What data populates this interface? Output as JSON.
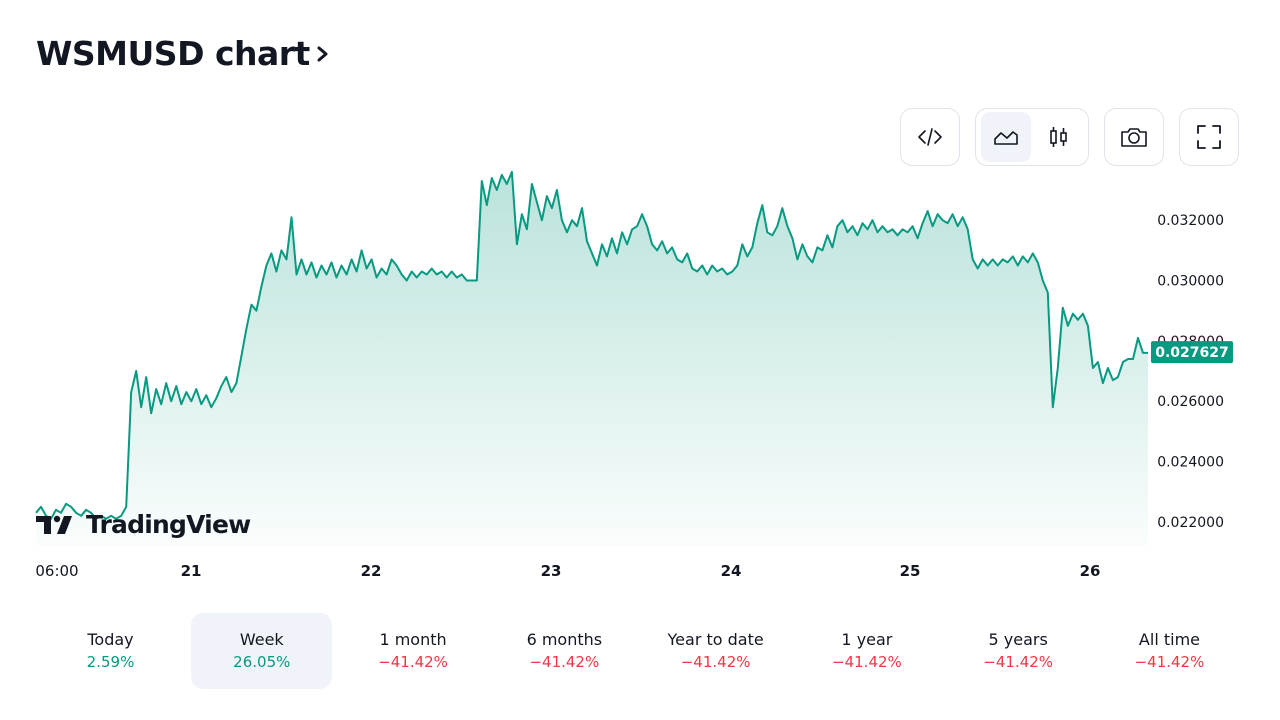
{
  "title": "WSMUSD chart",
  "toolbar": {
    "embed_icon": "code-icon",
    "area_icon": "area-chart-icon",
    "candles_icon": "candlestick-icon",
    "camera_icon": "camera-icon",
    "fullscreen_icon": "fullscreen-icon"
  },
  "logo_text": "TradingView",
  "colors": {
    "line": "#089981",
    "positive": "#089981",
    "negative": "#f23645",
    "price_tag": "#089981"
  },
  "chart_data": {
    "type": "area",
    "ylim": [
      0.0212,
      0.0332
    ],
    "y_ticks": [
      "0.032000",
      "0.030000",
      "0.028000",
      "0.026000",
      "0.024000",
      "0.022000"
    ],
    "y_tick_values": [
      0.032,
      0.03,
      0.028,
      0.026,
      0.024,
      0.022
    ],
    "x_ticks": [
      "06:00",
      "21",
      "22",
      "23",
      "24",
      "25",
      "26"
    ],
    "last_price": "0.027627",
    "last_value": 0.027627,
    "series": [
      {
        "values": [
          0.0223,
          0.0225,
          0.0222,
          0.0221,
          0.0224,
          0.0223,
          0.0226,
          0.0225,
          0.0223,
          0.0222,
          0.0224,
          0.0223,
          0.0221,
          0.0222,
          0.0221,
          0.0222,
          0.0221,
          0.0222,
          0.0225,
          0.0263,
          0.027,
          0.0258,
          0.0268,
          0.0256,
          0.0264,
          0.0259,
          0.0266,
          0.026,
          0.0265,
          0.0259,
          0.0263,
          0.026,
          0.0264,
          0.0259,
          0.0262,
          0.0258,
          0.0261,
          0.0265,
          0.0268,
          0.0263,
          0.0266,
          0.0275,
          0.0284,
          0.0292,
          0.029,
          0.0298,
          0.0305,
          0.0309,
          0.0303,
          0.031,
          0.0307,
          0.0321,
          0.0302,
          0.0307,
          0.0302,
          0.0306,
          0.0301,
          0.0305,
          0.0302,
          0.0306,
          0.0301,
          0.0305,
          0.0302,
          0.0307,
          0.0303,
          0.031,
          0.0304,
          0.0307,
          0.0301,
          0.0304,
          0.0302,
          0.0307,
          0.0305,
          0.0302,
          0.03,
          0.0303,
          0.0301,
          0.0303,
          0.0302,
          0.0304,
          0.0302,
          0.0303,
          0.0301,
          0.0303,
          0.0301,
          0.0302,
          0.03,
          0.03,
          0.03,
          0.0333,
          0.0325,
          0.0334,
          0.033,
          0.0335,
          0.0332,
          0.0336,
          0.0312,
          0.0322,
          0.0317,
          0.0332,
          0.0326,
          0.032,
          0.0328,
          0.0324,
          0.033,
          0.032,
          0.0316,
          0.032,
          0.0318,
          0.0324,
          0.0313,
          0.0309,
          0.0305,
          0.0312,
          0.0308,
          0.0314,
          0.0309,
          0.0316,
          0.0312,
          0.0317,
          0.0318,
          0.0322,
          0.0318,
          0.0312,
          0.031,
          0.0313,
          0.0309,
          0.0311,
          0.0307,
          0.0306,
          0.0309,
          0.0304,
          0.0303,
          0.0305,
          0.0302,
          0.0305,
          0.0303,
          0.0304,
          0.0302,
          0.0303,
          0.0305,
          0.0312,
          0.0308,
          0.0311,
          0.0319,
          0.0325,
          0.0316,
          0.0315,
          0.0318,
          0.0324,
          0.0318,
          0.0314,
          0.0307,
          0.0312,
          0.0308,
          0.0306,
          0.0311,
          0.031,
          0.0315,
          0.0311,
          0.0318,
          0.032,
          0.0316,
          0.0318,
          0.0315,
          0.0319,
          0.0317,
          0.032,
          0.0316,
          0.0318,
          0.0316,
          0.0317,
          0.0315,
          0.0317,
          0.0316,
          0.0318,
          0.0314,
          0.0319,
          0.0323,
          0.0318,
          0.0322,
          0.032,
          0.0319,
          0.0322,
          0.0318,
          0.0321,
          0.0317,
          0.0307,
          0.0304,
          0.0307,
          0.0305,
          0.0307,
          0.0305,
          0.0307,
          0.0306,
          0.0308,
          0.0305,
          0.0308,
          0.0306,
          0.0309,
          0.0306,
          0.03,
          0.0296,
          0.0258,
          0.0271,
          0.0291,
          0.0285,
          0.0289,
          0.0287,
          0.0289,
          0.0285,
          0.0271,
          0.0273,
          0.0266,
          0.0271,
          0.0267,
          0.0268,
          0.0273,
          0.0274,
          0.0274,
          0.0281,
          0.0276,
          0.0276
        ]
      }
    ]
  },
  "periods": [
    {
      "label": "Today",
      "value": "2.59%",
      "sign": "pos",
      "active": false
    },
    {
      "label": "Week",
      "value": "26.05%",
      "sign": "pos",
      "active": true
    },
    {
      "label": "1 month",
      "value": "−41.42%",
      "sign": "neg",
      "active": false
    },
    {
      "label": "6 months",
      "value": "−41.42%",
      "sign": "neg",
      "active": false
    },
    {
      "label": "Year to date",
      "value": "−41.42%",
      "sign": "neg",
      "active": false
    },
    {
      "label": "1 year",
      "value": "−41.42%",
      "sign": "neg",
      "active": false
    },
    {
      "label": "5 years",
      "value": "−41.42%",
      "sign": "neg",
      "active": false
    },
    {
      "label": "All time",
      "value": "−41.42%",
      "sign": "neg",
      "active": false
    }
  ]
}
